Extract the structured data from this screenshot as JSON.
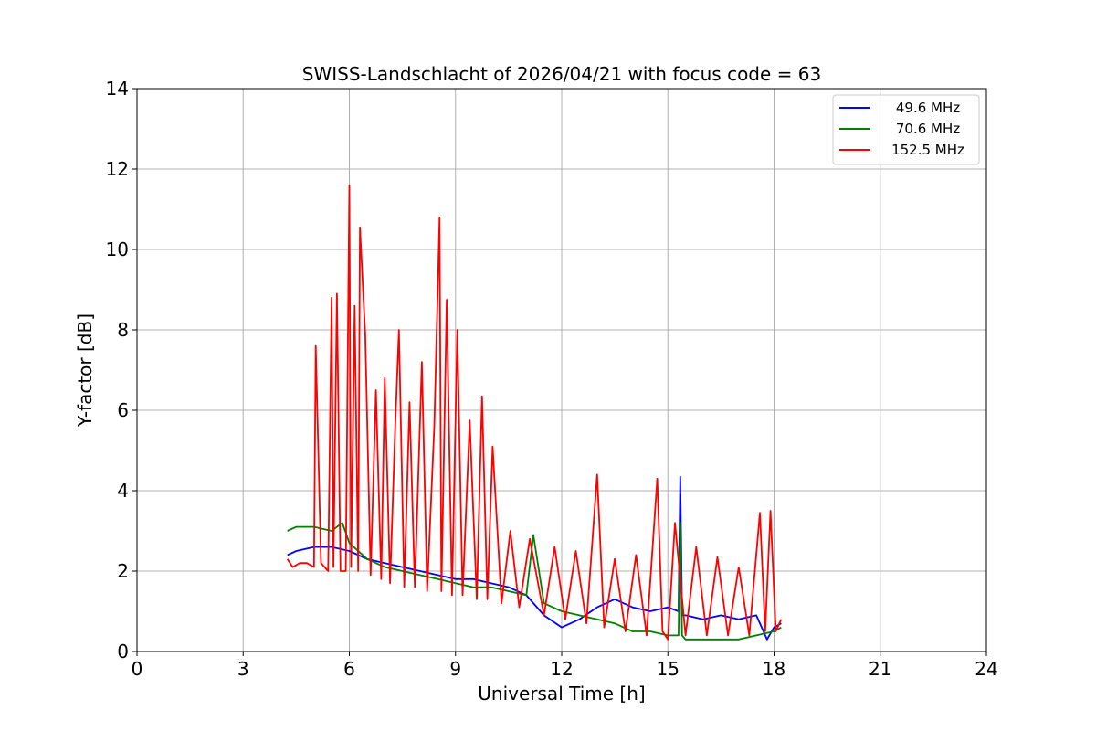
{
  "chart_data": {
    "type": "line",
    "title": "SWISS-Landschlacht of 2026/04/21 with focus code = 63",
    "xlabel": "Universal Time [h]",
    "ylabel": "Y-factor [dB]",
    "xlim": [
      0,
      24
    ],
    "ylim": [
      0,
      14
    ],
    "xticks": [
      0,
      3,
      6,
      9,
      12,
      15,
      18,
      21,
      24
    ],
    "yticks": [
      0,
      2,
      4,
      6,
      8,
      10,
      12,
      14
    ],
    "grid": true,
    "legend_position": "top-right",
    "series": [
      {
        "name": "49.6 MHz",
        "color": "#0000ff",
        "x": [
          4.25,
          4.5,
          5.0,
          5.5,
          6.0,
          6.5,
          7.0,
          7.5,
          8.0,
          8.5,
          9.0,
          9.5,
          10.0,
          10.5,
          11.0,
          11.5,
          12.0,
          12.5,
          13.0,
          13.5,
          14.0,
          14.5,
          15.0,
          15.3,
          15.35,
          15.4,
          15.5,
          16.0,
          16.5,
          17.0,
          17.5,
          17.8,
          18.0,
          18.2
        ],
        "y": [
          2.4,
          2.5,
          2.6,
          2.6,
          2.5,
          2.3,
          2.2,
          2.1,
          2.0,
          1.9,
          1.8,
          1.8,
          1.7,
          1.6,
          1.4,
          0.9,
          0.6,
          0.8,
          1.1,
          1.3,
          1.1,
          1.0,
          1.1,
          1.0,
          4.35,
          0.9,
          0.9,
          0.8,
          0.9,
          0.8,
          0.9,
          0.3,
          0.6,
          0.7
        ]
      },
      {
        "name": "70.6 MHz",
        "color": "#008000",
        "x": [
          4.25,
          4.5,
          5.0,
          5.5,
          5.8,
          6.0,
          6.5,
          7.0,
          7.5,
          8.0,
          8.5,
          9.0,
          9.5,
          10.0,
          10.5,
          11.0,
          11.2,
          11.5,
          12.0,
          12.5,
          13.0,
          13.5,
          14.0,
          14.5,
          15.0,
          15.3,
          15.35,
          15.4,
          15.5,
          16.0,
          16.5,
          17.0,
          17.5,
          18.0,
          18.2
        ],
        "y": [
          3.0,
          3.1,
          3.1,
          3.0,
          3.2,
          2.7,
          2.3,
          2.1,
          2.0,
          1.9,
          1.8,
          1.7,
          1.6,
          1.6,
          1.5,
          1.4,
          2.9,
          1.2,
          1.0,
          0.9,
          0.8,
          0.7,
          0.5,
          0.5,
          0.4,
          0.4,
          3.2,
          0.4,
          0.3,
          0.3,
          0.3,
          0.3,
          0.4,
          0.5,
          0.6
        ]
      },
      {
        "name": "152.5 MHz",
        "color": "#ff0000",
        "x": [
          4.25,
          4.4,
          4.6,
          4.8,
          5.0,
          5.05,
          5.2,
          5.4,
          5.5,
          5.55,
          5.65,
          5.75,
          5.9,
          6.0,
          6.05,
          6.15,
          6.25,
          6.3,
          6.45,
          6.6,
          6.75,
          6.9,
          7.0,
          7.15,
          7.3,
          7.4,
          7.55,
          7.7,
          7.85,
          8.05,
          8.2,
          8.4,
          8.55,
          8.6,
          8.75,
          8.9,
          9.05,
          9.2,
          9.4,
          9.6,
          9.75,
          9.9,
          10.05,
          10.3,
          10.55,
          10.8,
          11.1,
          11.5,
          11.8,
          12.1,
          12.4,
          12.7,
          13.0,
          13.2,
          13.5,
          13.8,
          14.1,
          14.4,
          14.7,
          14.85,
          15.0,
          15.2,
          15.5,
          15.8,
          16.1,
          16.4,
          16.7,
          17.0,
          17.3,
          17.6,
          17.75,
          17.9,
          18.05,
          18.2
        ],
        "y": [
          2.3,
          2.1,
          2.2,
          2.2,
          2.1,
          7.6,
          2.2,
          2.0,
          8.8,
          2.1,
          8.9,
          2.0,
          2.0,
          11.6,
          2.1,
          8.6,
          2.0,
          10.55,
          7.9,
          1.9,
          6.5,
          1.8,
          6.8,
          1.7,
          5.7,
          8.0,
          1.6,
          6.2,
          1.6,
          7.2,
          1.5,
          5.6,
          10.8,
          1.5,
          8.75,
          1.4,
          8.0,
          1.4,
          5.75,
          1.3,
          6.35,
          1.3,
          5.1,
          1.2,
          3.0,
          1.1,
          2.8,
          0.9,
          2.6,
          0.8,
          2.5,
          0.7,
          4.4,
          0.6,
          2.3,
          0.5,
          2.4,
          0.4,
          4.3,
          0.5,
          0.3,
          3.2,
          0.4,
          2.6,
          0.4,
          2.35,
          0.4,
          2.1,
          0.4,
          3.45,
          0.5,
          3.5,
          0.5,
          0.8
        ]
      }
    ]
  }
}
